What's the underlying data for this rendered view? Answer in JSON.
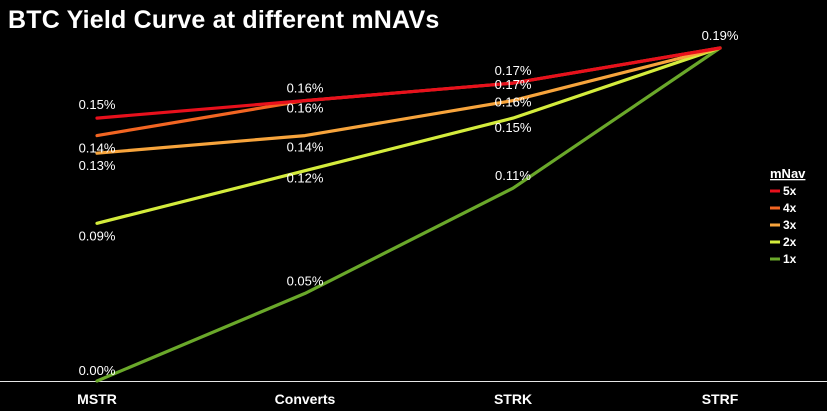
{
  "chart_data": {
    "type": "line",
    "title": "BTC Yield Curve at different mNAVs",
    "categories": [
      "MSTR",
      "Converts",
      "STRK",
      "STRF"
    ],
    "series": [
      {
        "name": "5x",
        "values": [
          0.15,
          0.16,
          0.17,
          0.19
        ],
        "labels": [
          "0.15%",
          "0.16%",
          "0.17%",
          ""
        ],
        "color": "#e8101c"
      },
      {
        "name": "4x",
        "values": [
          0.14,
          0.16,
          0.17,
          0.19
        ],
        "labels": [
          "0.14%",
          "0.16%",
          "0.17%",
          ""
        ],
        "color": "#f26522"
      },
      {
        "name": "3x",
        "values": [
          0.13,
          0.14,
          0.16,
          0.19
        ],
        "labels": [
          "0.13%",
          "0.14%",
          "0.16%",
          ""
        ],
        "color": "#f7a43c"
      },
      {
        "name": "2x",
        "values": [
          0.09,
          0.12,
          0.15,
          0.19
        ],
        "labels": [
          "0.09%",
          "0.12%",
          "0.15%",
          ""
        ],
        "color": "#d4ec3c"
      },
      {
        "name": "1x",
        "values": [
          0.0,
          0.05,
          0.11,
          0.19
        ],
        "labels": [
          "0.00%",
          "0.05%",
          "0.11%",
          "0.19%"
        ],
        "color": "#6aa82a"
      }
    ],
    "legend": {
      "title": "mNav",
      "placement": "right"
    },
    "ylim": [
      0,
      0.19
    ],
    "grid": false,
    "xlabel": "",
    "ylabel": ""
  }
}
